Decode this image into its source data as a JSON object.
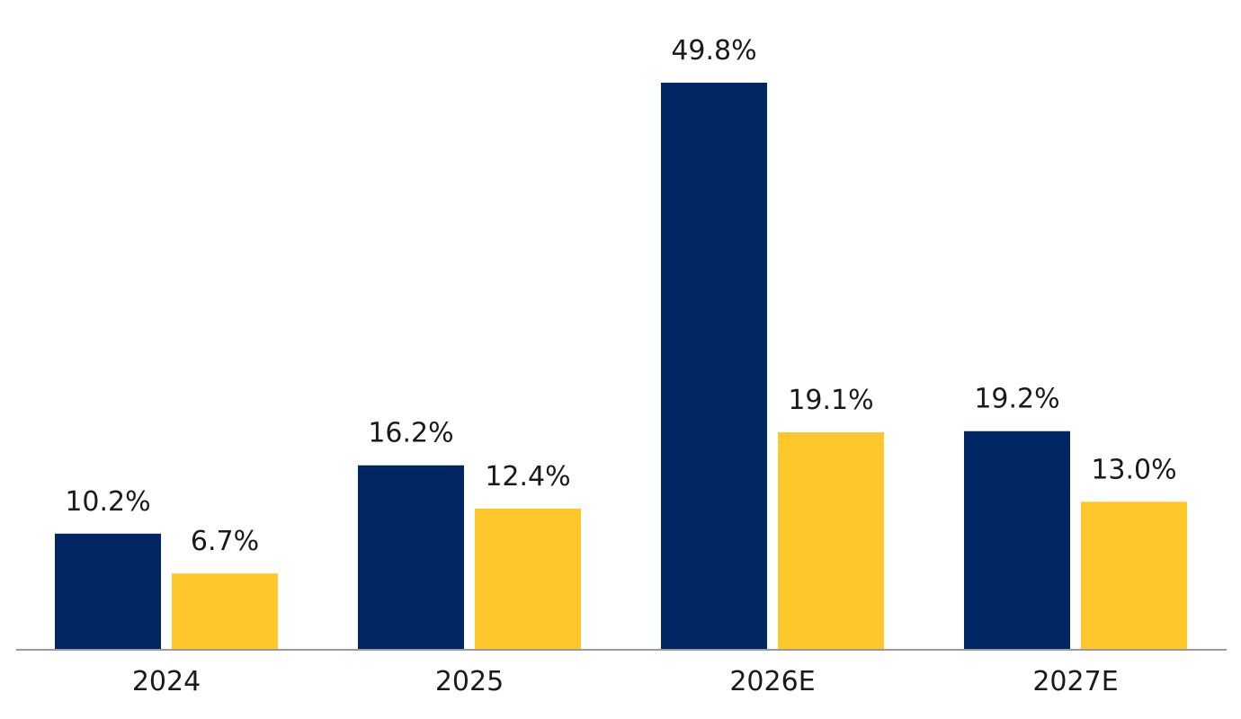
{
  "chart_data": {
    "type": "bar",
    "categories": [
      "2024",
      "2025",
      "2026E",
      "2027E"
    ],
    "series": [
      {
        "values": [
          10.2,
          16.2,
          49.8,
          19.2
        ],
        "labels": [
          "10.2%",
          "16.2%",
          "49.8%",
          "19.2%"
        ],
        "color": "#002663"
      },
      {
        "values": [
          6.7,
          12.4,
          19.1,
          13.0
        ],
        "labels": [
          "6.7%",
          "12.4%",
          "19.1%",
          "13.0%"
        ],
        "color": "#FFC72C"
      }
    ],
    "title": "",
    "xlabel": "",
    "ylabel": "",
    "ylim": [
      0,
      50
    ],
    "grid": false,
    "legend": "none"
  },
  "colors": {
    "axis": "#9a9a9a",
    "text": "#1a1a1a",
    "background": "#ffffff"
  }
}
